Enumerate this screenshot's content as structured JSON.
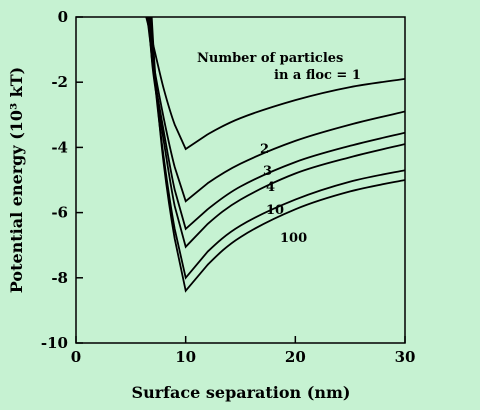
{
  "chart_data": {
    "type": "line",
    "title": "",
    "xlabel": "Surface separation (nm)",
    "ylabel": "Potential energy (10³ kT)",
    "xlim": [
      0,
      30
    ],
    "ylim": [
      -10,
      0
    ],
    "xticks": [
      0,
      10,
      20,
      30
    ],
    "yticks": [
      0,
      -2,
      -4,
      -6,
      -8,
      -10
    ],
    "grid": false,
    "legend": "none",
    "annotation_header_1": "Number of particles",
    "annotation_header_2": "in a floc = 1",
    "series": [
      {
        "label": "1",
        "x": [
          6.4,
          7.0,
          8.0,
          9.0,
          10.0,
          12,
          15,
          20,
          25,
          30
        ],
        "y": [
          0.0,
          -0.8,
          -2.2,
          -3.3,
          -4.05,
          -3.6,
          -3.1,
          -2.55,
          -2.15,
          -1.9
        ]
      },
      {
        "label": "2",
        "x": [
          6.5,
          7.0,
          8.0,
          9.0,
          10.0,
          12,
          15,
          20,
          25,
          30
        ],
        "y": [
          0.0,
          -1.3,
          -3.1,
          -4.6,
          -5.65,
          -5.1,
          -4.5,
          -3.8,
          -3.3,
          -2.9
        ]
      },
      {
        "label": "3",
        "x": [
          6.6,
          7.0,
          8.0,
          9.0,
          10.0,
          12,
          15,
          20,
          25,
          30
        ],
        "y": [
          0.0,
          -1.5,
          -3.5,
          -5.3,
          -6.5,
          -5.9,
          -5.2,
          -4.45,
          -3.95,
          -3.55
        ]
      },
      {
        "label": "4",
        "x": [
          6.7,
          7.0,
          8.0,
          9.0,
          10.0,
          12,
          15,
          20,
          25,
          30
        ],
        "y": [
          0.0,
          -1.6,
          -3.8,
          -5.8,
          -7.05,
          -6.35,
          -5.6,
          -4.8,
          -4.3,
          -3.9
        ]
      },
      {
        "label": "10",
        "x": [
          6.8,
          7.2,
          8.0,
          9.0,
          10.0,
          12,
          15,
          20,
          25,
          30
        ],
        "y": [
          0.0,
          -2.0,
          -4.3,
          -6.5,
          -8.0,
          -7.2,
          -6.4,
          -5.6,
          -5.05,
          -4.7
        ]
      },
      {
        "label": "100",
        "x": [
          6.9,
          7.3,
          8.0,
          9.0,
          10.0,
          12,
          15,
          20,
          25,
          30
        ],
        "y": [
          0.0,
          -2.1,
          -4.5,
          -6.8,
          -8.4,
          -7.6,
          -6.75,
          -5.9,
          -5.35,
          -5.0
        ]
      }
    ]
  }
}
